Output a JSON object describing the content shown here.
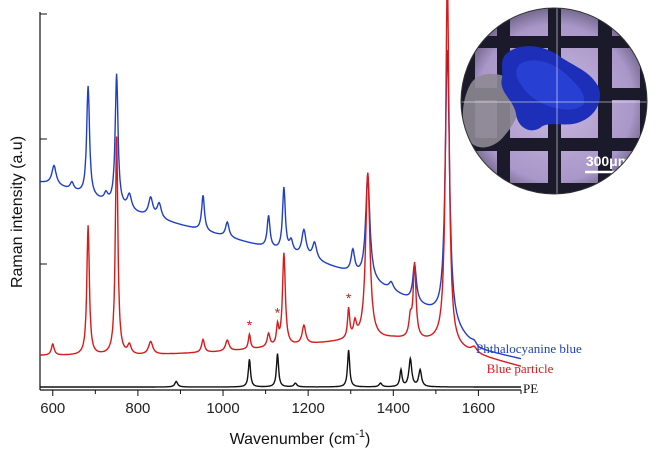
{
  "chart_data": {
    "type": "line",
    "title": "",
    "xlabel_base": "Wavenumber (cm",
    "xlabel_sup": "-1",
    "xlabel_close": ")",
    "ylabel": "Raman intensity (a.u)",
    "xlim": [
      570,
      1700
    ],
    "ylim": [
      0,
      1
    ],
    "xticks": [
      600,
      800,
      1000,
      1200,
      1400,
      1600
    ],
    "grid": false,
    "series": [
      {
        "name": "Phthalocyanine blue",
        "color": "#1f3fc6",
        "baseline": [
          [
            570,
            0.55
          ],
          [
            600,
            0.545
          ],
          [
            700,
            0.505
          ],
          [
            800,
            0.465
          ],
          [
            900,
            0.435
          ],
          [
            1000,
            0.405
          ],
          [
            1100,
            0.375
          ],
          [
            1200,
            0.345
          ],
          [
            1250,
            0.325
          ],
          [
            1300,
            0.305
          ],
          [
            1400,
            0.255
          ],
          [
            1500,
            0.195
          ],
          [
            1600,
            0.1
          ],
          [
            1700,
            0.075
          ]
        ],
        "peaks": [
          [
            603,
            0.05,
            6
          ],
          [
            645,
            0.02,
            5
          ],
          [
            683,
            0.295,
            4
          ],
          [
            725,
            0.02,
            5
          ],
          [
            750,
            0.353,
            4
          ],
          [
            780,
            0.04,
            6
          ],
          [
            830,
            0.05,
            6
          ],
          [
            850,
            0.04,
            6
          ],
          [
            953,
            0.095,
            4
          ],
          [
            1010,
            0.04,
            5
          ],
          [
            1107,
            0.085,
            4
          ],
          [
            1143,
            0.17,
            4
          ],
          [
            1160,
            0.03,
            5
          ],
          [
            1190,
            0.07,
            6
          ],
          [
            1215,
            0.045,
            6
          ],
          [
            1305,
            0.06,
            5
          ],
          [
            1340,
            0.28,
            6
          ],
          [
            1395,
            0.02,
            6
          ],
          [
            1450,
            0.1,
            5
          ],
          [
            1527,
            0.735,
            6
          ],
          [
            1590,
            0.01,
            8
          ]
        ]
      },
      {
        "name": "Blue particle",
        "color": "#d81a1a",
        "baseline": [
          [
            570,
            0.085
          ],
          [
            600,
            0.085
          ],
          [
            700,
            0.085
          ],
          [
            800,
            0.085
          ],
          [
            900,
            0.09
          ],
          [
            1000,
            0.095
          ],
          [
            1100,
            0.105
          ],
          [
            1200,
            0.115
          ],
          [
            1250,
            0.12
          ],
          [
            1300,
            0.125
          ],
          [
            1400,
            0.13
          ],
          [
            1500,
            0.12
          ],
          [
            1600,
            0.085
          ],
          [
            1700,
            0.055
          ]
        ],
        "peaks": [
          [
            600,
            0.03,
            4
          ],
          [
            683,
            0.35,
            3.5
          ],
          [
            750,
            0.59,
            3.5
          ],
          [
            780,
            0.025,
            5
          ],
          [
            830,
            0.035,
            6
          ],
          [
            953,
            0.035,
            4
          ],
          [
            1010,
            0.03,
            5
          ],
          [
            1062,
            0.04,
            3
          ],
          [
            1107,
            0.035,
            4
          ],
          [
            1128,
            0.05,
            3
          ],
          [
            1143,
            0.25,
            4
          ],
          [
            1190,
            0.05,
            5
          ],
          [
            1295,
            0.08,
            3
          ],
          [
            1310,
            0.04,
            4
          ],
          [
            1340,
            0.45,
            6
          ],
          [
            1440,
            0.05,
            4
          ],
          [
            1450,
            0.2,
            4
          ],
          [
            1527,
            0.98,
            5
          ],
          [
            1590,
            0.015,
            8
          ]
        ]
      },
      {
        "name": "PE",
        "color": "#111111",
        "baseline": [
          [
            570,
            0.0
          ],
          [
            1700,
            0.0
          ]
        ],
        "peaks": [
          [
            890,
            0.015,
            4
          ],
          [
            1062,
            0.075,
            3
          ],
          [
            1128,
            0.09,
            3
          ],
          [
            1170,
            0.01,
            4
          ],
          [
            1295,
            0.1,
            3
          ],
          [
            1370,
            0.01,
            4
          ],
          [
            1418,
            0.045,
            3
          ],
          [
            1440,
            0.075,
            4
          ],
          [
            1463,
            0.045,
            4
          ]
        ]
      }
    ],
    "annotations": {
      "star_symbol": "*",
      "star_positions": [
        1062,
        1128,
        1295
      ]
    },
    "inset": {
      "scale_label": "300μm"
    }
  }
}
